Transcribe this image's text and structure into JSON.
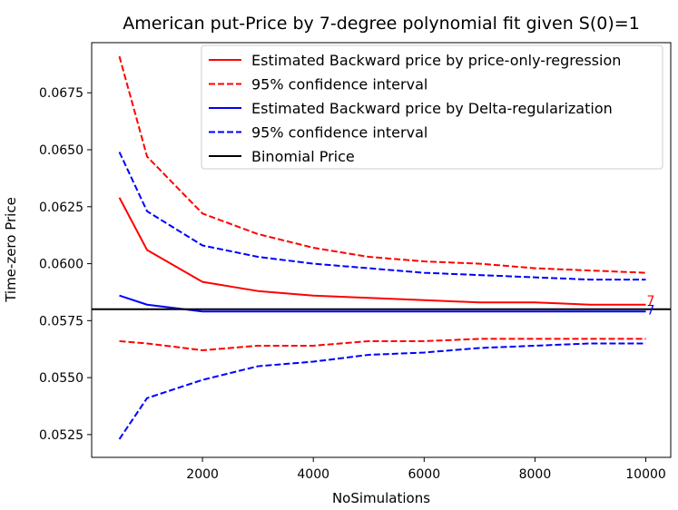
{
  "chart_data": {
    "type": "line",
    "title": "American put-Price by 7-degree polynomial fit given S(0)=1",
    "xlabel": "NoSimulations",
    "ylabel": "Time-zero Price",
    "xlim": [
      0,
      10450
    ],
    "ylim": [
      0.0515,
      0.0697
    ],
    "xticks": [
      2000,
      4000,
      6000,
      8000,
      10000
    ],
    "yticks": [
      0.0525,
      0.055,
      0.0575,
      0.06,
      0.0625,
      0.065,
      0.0675
    ],
    "ytick_labels": [
      "0.0525",
      "0.0550",
      "0.0575",
      "0.0600",
      "0.0625",
      "0.0650",
      "0.0675"
    ],
    "xtick_labels": [
      "2000",
      "4000",
      "6000",
      "8000",
      "10000"
    ],
    "legend_position": "upper-right",
    "end_labels": [
      "7",
      "7"
    ],
    "series": [
      {
        "name": "Estimated Backward price by price-only-regression",
        "color": "#ff0000",
        "style": "solid",
        "x": [
          500,
          1000,
          2000,
          3000,
          4000,
          5000,
          6000,
          7000,
          8000,
          9000,
          10000
        ],
        "values": [
          0.0629,
          0.0606,
          0.0592,
          0.0588,
          0.0586,
          0.0585,
          0.0584,
          0.0583,
          0.0583,
          0.0582,
          0.0582
        ]
      },
      {
        "name": "95% confidence interval",
        "color": "#ff0000",
        "style": "dashed",
        "x": [
          500,
          1000,
          2000,
          3000,
          4000,
          5000,
          6000,
          7000,
          8000,
          9000,
          10000
        ],
        "values": [
          0.0691,
          0.0647,
          0.0622,
          0.0613,
          0.0607,
          0.0603,
          0.0601,
          0.06,
          0.0598,
          0.0597,
          0.0596
        ]
      },
      {
        "name": "",
        "color": "#ff0000",
        "style": "dashed",
        "x": [
          500,
          1000,
          2000,
          3000,
          4000,
          5000,
          6000,
          7000,
          8000,
          9000,
          10000
        ],
        "values": [
          0.0566,
          0.0565,
          0.0562,
          0.0564,
          0.0564,
          0.0566,
          0.0566,
          0.0567,
          0.0567,
          0.0567,
          0.0567
        ]
      },
      {
        "name": "Estimated Backward price by Delta-regularization",
        "color": "#0000ff",
        "style": "solid",
        "x": [
          500,
          1000,
          2000,
          3000,
          4000,
          5000,
          6000,
          7000,
          8000,
          9000,
          10000
        ],
        "values": [
          0.0586,
          0.0582,
          0.0579,
          0.0579,
          0.0579,
          0.0579,
          0.0579,
          0.0579,
          0.0579,
          0.0579,
          0.0579
        ]
      },
      {
        "name": "95% confidence interval",
        "color": "#0000ff",
        "style": "dashed",
        "x": [
          500,
          1000,
          2000,
          3000,
          4000,
          5000,
          6000,
          7000,
          8000,
          9000,
          10000
        ],
        "values": [
          0.0649,
          0.0623,
          0.0608,
          0.0603,
          0.06,
          0.0598,
          0.0596,
          0.0595,
          0.0594,
          0.0593,
          0.0593
        ]
      },
      {
        "name": "",
        "color": "#0000ff",
        "style": "dashed",
        "x": [
          500,
          1000,
          2000,
          3000,
          4000,
          5000,
          6000,
          7000,
          8000,
          9000,
          10000
        ],
        "values": [
          0.0523,
          0.0541,
          0.0549,
          0.0555,
          0.0557,
          0.056,
          0.0561,
          0.0563,
          0.0564,
          0.0565,
          0.0565
        ]
      },
      {
        "name": "Binomial Price",
        "color": "#000000",
        "style": "solid",
        "x": [
          0,
          10450
        ],
        "values": [
          0.058,
          0.058
        ]
      }
    ]
  }
}
